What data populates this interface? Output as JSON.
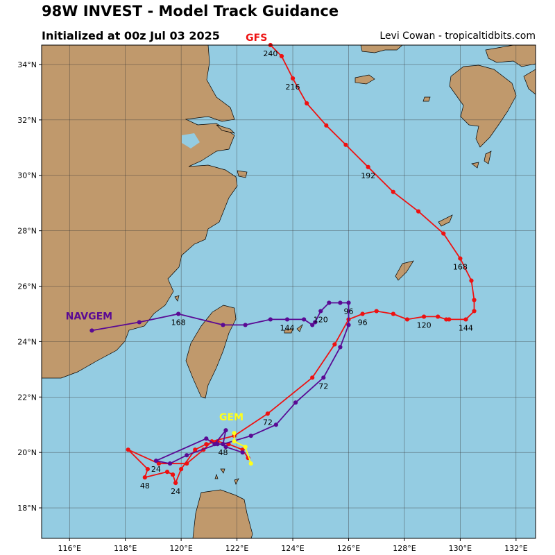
{
  "header": {
    "title": "98W INVEST - Model Track Guidance",
    "subtitle": "Initialized at 00z Jul 03 2025",
    "credit": "Levi Cowan - tropicaltidbits.com"
  },
  "colors": {
    "ocean": "#94cce2",
    "land": "#c0996c",
    "grid": "#3a3a3a"
  },
  "chart_data": {
    "type": "line",
    "title": "98W INVEST - Model Track Guidance",
    "xlabel": "",
    "ylabel": "",
    "xlim": [
      115.0,
      132.7
    ],
    "ylim": [
      16.9,
      34.7
    ],
    "grid": true,
    "x_ticks": [
      116,
      118,
      120,
      122,
      124,
      126,
      128,
      130,
      132
    ],
    "x_tick_labels": [
      "116°E",
      "118°E",
      "120°E",
      "122°E",
      "124°E",
      "126°E",
      "128°E",
      "130°E",
      "132°E"
    ],
    "y_ticks": [
      18,
      20,
      22,
      24,
      26,
      28,
      30,
      32,
      34
    ],
    "y_tick_labels": [
      "18°N",
      "20°N",
      "22°N",
      "24°N",
      "26°N",
      "28°N",
      "30°N",
      "32°N",
      "34°N"
    ],
    "series": [
      {
        "name": "GFS",
        "color": "#ee1111",
        "points": [
          [
            122.4,
            19.8
          ],
          [
            122.2,
            20.1
          ],
          [
            121.7,
            20.3
          ],
          [
            121.3,
            20.4
          ],
          [
            120.9,
            20.3
          ],
          [
            120.5,
            20.1
          ],
          [
            120.0,
            19.4
          ],
          [
            119.8,
            18.9
          ],
          [
            119.7,
            19.2
          ],
          [
            119.5,
            19.3
          ],
          [
            118.7,
            19.1
          ],
          [
            118.8,
            19.4
          ],
          [
            118.1,
            20.1
          ],
          [
            119.2,
            19.6
          ],
          [
            120.2,
            19.6
          ],
          [
            120.8,
            20.1
          ],
          [
            121.1,
            20.4
          ],
          [
            121.9,
            20.6
          ],
          [
            123.1,
            21.4
          ],
          [
            124.7,
            22.7
          ],
          [
            125.5,
            23.9
          ],
          [
            126.0,
            24.8
          ],
          [
            126.5,
            25.0
          ],
          [
            127.0,
            25.1
          ],
          [
            127.6,
            25.0
          ],
          [
            128.1,
            24.8
          ],
          [
            128.7,
            24.9
          ],
          [
            129.2,
            24.9
          ],
          [
            129.5,
            24.8
          ],
          [
            129.6,
            24.8
          ],
          [
            130.2,
            24.8
          ],
          [
            130.5,
            25.1
          ],
          [
            130.5,
            25.5
          ],
          [
            130.4,
            26.2
          ],
          [
            130.0,
            27.0
          ],
          [
            129.4,
            27.9
          ],
          [
            128.5,
            28.7
          ],
          [
            127.6,
            29.4
          ],
          [
            126.7,
            30.3
          ],
          [
            125.9,
            31.1
          ],
          [
            125.2,
            31.8
          ],
          [
            124.5,
            32.6
          ],
          [
            124.0,
            33.5
          ],
          [
            123.6,
            34.3
          ],
          [
            123.2,
            34.7
          ]
        ],
        "labels": [
          {
            "text": "24",
            "at": [
              119.8,
              18.9
            ]
          },
          {
            "text": "48",
            "at": [
              118.7,
              19.1
            ]
          },
          {
            "text": "72",
            "at": [
              123.1,
              21.4
            ]
          },
          {
            "text": "96",
            "at": [
              126.5,
              25.0
            ]
          },
          {
            "text": "120",
            "at": [
              128.7,
              24.9
            ]
          },
          {
            "text": "144",
            "at": [
              130.2,
              24.8
            ]
          },
          {
            "text": "168",
            "at": [
              130.0,
              27.0
            ]
          },
          {
            "text": "192",
            "at": [
              126.7,
              30.3
            ]
          },
          {
            "text": "216",
            "at": [
              124.0,
              33.5
            ]
          },
          {
            "text": "240",
            "at": [
              123.2,
              34.7
            ]
          }
        ]
      },
      {
        "name": "NAVGEM",
        "color": "#5a0a94",
        "points": [
          [
            122.2,
            20.0
          ],
          [
            121.6,
            20.2
          ],
          [
            121.5,
            20.3
          ],
          [
            121.3,
            20.3
          ],
          [
            120.2,
            19.9
          ],
          [
            119.6,
            19.6
          ],
          [
            119.1,
            19.7
          ],
          [
            120.9,
            20.5
          ],
          [
            121.2,
            20.3
          ],
          [
            121.6,
            20.8
          ],
          [
            121.5,
            20.3
          ],
          [
            122.5,
            20.6
          ],
          [
            123.4,
            21.0
          ],
          [
            124.1,
            21.8
          ],
          [
            125.1,
            22.7
          ],
          [
            125.7,
            23.8
          ],
          [
            126.0,
            24.6
          ],
          [
            126.0,
            25.4
          ],
          [
            125.7,
            25.4
          ],
          [
            125.3,
            25.4
          ],
          [
            125.0,
            25.1
          ],
          [
            124.8,
            24.7
          ],
          [
            124.7,
            24.6
          ],
          [
            124.4,
            24.8
          ],
          [
            123.8,
            24.8
          ],
          [
            123.2,
            24.8
          ],
          [
            122.3,
            24.6
          ],
          [
            121.5,
            24.6
          ],
          [
            119.9,
            25.0
          ],
          [
            118.5,
            24.7
          ],
          [
            116.8,
            24.4
          ]
        ],
        "labels": [
          {
            "text": "24",
            "at": [
              119.1,
              19.7
            ]
          },
          {
            "text": "48",
            "at": [
              121.5,
              20.3
            ]
          },
          {
            "text": "72",
            "at": [
              125.1,
              22.7
            ]
          },
          {
            "text": "96",
            "at": [
              126.0,
              25.4
            ]
          },
          {
            "text": "120",
            "at": [
              125.0,
              25.1
            ]
          },
          {
            "text": "144",
            "at": [
              123.8,
              24.8
            ]
          },
          {
            "text": "168",
            "at": [
              119.9,
              25.0
            ]
          }
        ]
      },
      {
        "name": "GEM",
        "color": "#ffff1a",
        "points": [
          [
            122.5,
            19.6
          ],
          [
            122.3,
            20.2
          ],
          [
            121.9,
            20.4
          ],
          [
            121.9,
            20.7
          ]
        ],
        "labels": []
      }
    ]
  }
}
